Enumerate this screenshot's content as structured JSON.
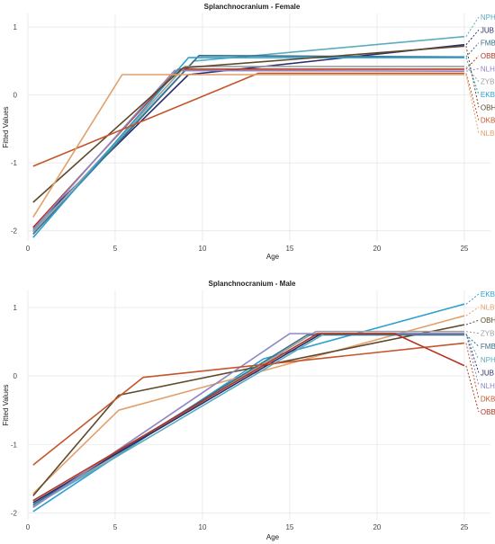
{
  "chart_data": [
    {
      "type": "line",
      "title": "Splanchnocranium - Female",
      "xlabel": "Age",
      "ylabel": "Fitted Values",
      "xlim": [
        0,
        26.5
      ],
      "ylim": [
        -2.15,
        1.2
      ],
      "xticks": [
        0,
        5,
        10,
        15,
        20,
        25
      ],
      "yticks": [
        -2,
        -1,
        0,
        1
      ],
      "grid": true,
      "label_order": [
        "NPH",
        "JUB",
        "FMB",
        "OBB",
        "NLH",
        "ZYB",
        "EKB",
        "OBH",
        "DKB",
        "NLB"
      ],
      "series": [
        {
          "name": "NPH",
          "color": "#5aadbd",
          "x": [
            0.3,
            9.5,
            25
          ],
          "y": [
            -2.0,
            0.5,
            0.86
          ]
        },
        {
          "name": "JUB",
          "color": "#2b2d6e",
          "x": [
            0.3,
            9.2,
            25
          ],
          "y": [
            -1.95,
            0.3,
            0.74
          ]
        },
        {
          "name": "FMB",
          "color": "#3a6f87",
          "x": [
            0.3,
            9.8,
            25
          ],
          "y": [
            -2.05,
            0.58,
            0.56
          ]
        },
        {
          "name": "OBB",
          "color": "#b5341f",
          "x": [
            0.3,
            8.6,
            25
          ],
          "y": [
            -1.95,
            0.38,
            0.38
          ]
        },
        {
          "name": "NLH",
          "color": "#8f87c2",
          "x": [
            0.3,
            8.4,
            25
          ],
          "y": [
            -1.98,
            0.36,
            0.35
          ]
        },
        {
          "name": "ZYB",
          "color": "#9e9e9e",
          "x": [
            0.3,
            9.0,
            25
          ],
          "y": [
            -2.02,
            0.42,
            0.42
          ]
        },
        {
          "name": "EKB",
          "color": "#2e9fd0",
          "x": [
            0.3,
            9.2,
            25
          ],
          "y": [
            -2.1,
            0.55,
            0.55
          ]
        },
        {
          "name": "OBH",
          "color": "#5e4a2a",
          "x": [
            0.3,
            8.9,
            25
          ],
          "y": [
            -1.58,
            0.4,
            0.72
          ]
        },
        {
          "name": "DKB",
          "color": "#c4552a",
          "x": [
            0.3,
            13.2,
            25
          ],
          "y": [
            -1.05,
            0.32,
            0.32
          ]
        },
        {
          "name": "NLB",
          "color": "#e2a06b",
          "x": [
            0.3,
            5.4,
            25
          ],
          "y": [
            -1.8,
            0.3,
            0.3
          ]
        }
      ]
    },
    {
      "type": "line",
      "title": "Splanchnocranium - Male",
      "xlabel": "Age",
      "ylabel": "Fitted Values",
      "xlim": [
        0,
        26.5
      ],
      "ylim": [
        -2.1,
        1.25
      ],
      "xticks": [
        0,
        5,
        10,
        15,
        20,
        25
      ],
      "yticks": [
        -2,
        -1,
        0,
        1
      ],
      "grid": true,
      "label_order": [
        "EKB",
        "NLB",
        "OBH",
        "ZYB",
        "FMB",
        "NPH",
        "JUB",
        "NLH",
        "DKB",
        "OBB"
      ],
      "series": [
        {
          "name": "EKB",
          "color": "#2e9fd0",
          "x": [
            0.3,
            13.5,
            25
          ],
          "y": [
            -1.98,
            0.25,
            1.05
          ]
        },
        {
          "name": "NLB",
          "color": "#e2a06b",
          "x": [
            0.3,
            5.2,
            25
          ],
          "y": [
            -1.72,
            -0.5,
            0.88
          ]
        },
        {
          "name": "OBH",
          "color": "#5e4a2a",
          "x": [
            0.3,
            5.2,
            25
          ],
          "y": [
            -1.75,
            -0.28,
            0.75
          ]
        },
        {
          "name": "ZYB",
          "color": "#9e9e9e",
          "x": [
            0.3,
            16.5,
            25
          ],
          "y": [
            -1.9,
            0.65,
            0.65
          ]
        },
        {
          "name": "FMB",
          "color": "#3a6f87",
          "x": [
            0.3,
            16.0,
            25
          ],
          "y": [
            -1.88,
            0.6,
            0.6
          ]
        },
        {
          "name": "NPH",
          "color": "#5aadbd",
          "x": [
            0.3,
            17.0,
            25
          ],
          "y": [
            -1.9,
            0.62,
            0.62
          ]
        },
        {
          "name": "JUB",
          "color": "#2b2d6e",
          "x": [
            0.3,
            16.8,
            25
          ],
          "y": [
            -1.85,
            0.62,
            0.62
          ]
        },
        {
          "name": "NLH",
          "color": "#8f87c2",
          "x": [
            0.3,
            15.0,
            25
          ],
          "y": [
            -1.92,
            0.62,
            0.62
          ]
        },
        {
          "name": "DKB",
          "color": "#c4552a",
          "x": [
            0.3,
            6.6,
            25
          ],
          "y": [
            -1.3,
            -0.02,
            0.48
          ]
        },
        {
          "name": "OBB",
          "color": "#b5341f",
          "x": [
            0.3,
            16.6,
            21.0,
            25
          ],
          "y": [
            -1.82,
            0.62,
            0.62,
            0.15
          ]
        }
      ]
    }
  ]
}
